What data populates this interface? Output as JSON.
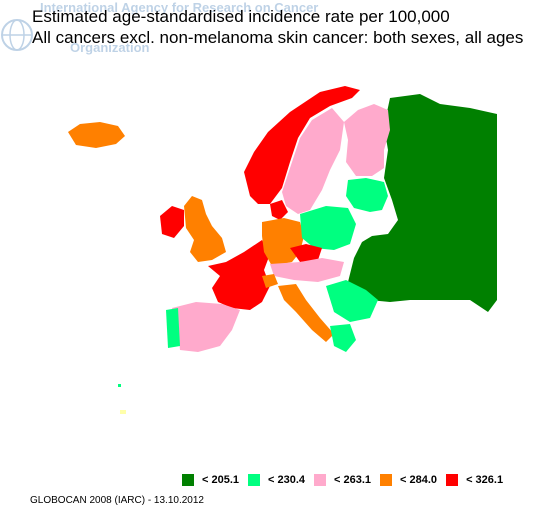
{
  "title_line1": "Estimated age-standardised incidence rate per 100,000",
  "title_line2": "All cancers excl. non-melanoma skin cancer: both sexes, all ages",
  "watermark": {
    "line1": "International Agency for Research on Cancer",
    "line2": "Organization"
  },
  "legend": [
    {
      "label": "< 205.1",
      "color": "#008000"
    },
    {
      "label": "< 230.4",
      "color": "#00ff80"
    },
    {
      "label": "< 263.1",
      "color": "#ffaacc"
    },
    {
      "label": "< 284.0",
      "color": "#ff8000"
    },
    {
      "label": "< 326.1",
      "color": "#ff0000"
    }
  ],
  "credit": "GLOBOCAN 2008 (IARC) - 13.10.2012"
}
